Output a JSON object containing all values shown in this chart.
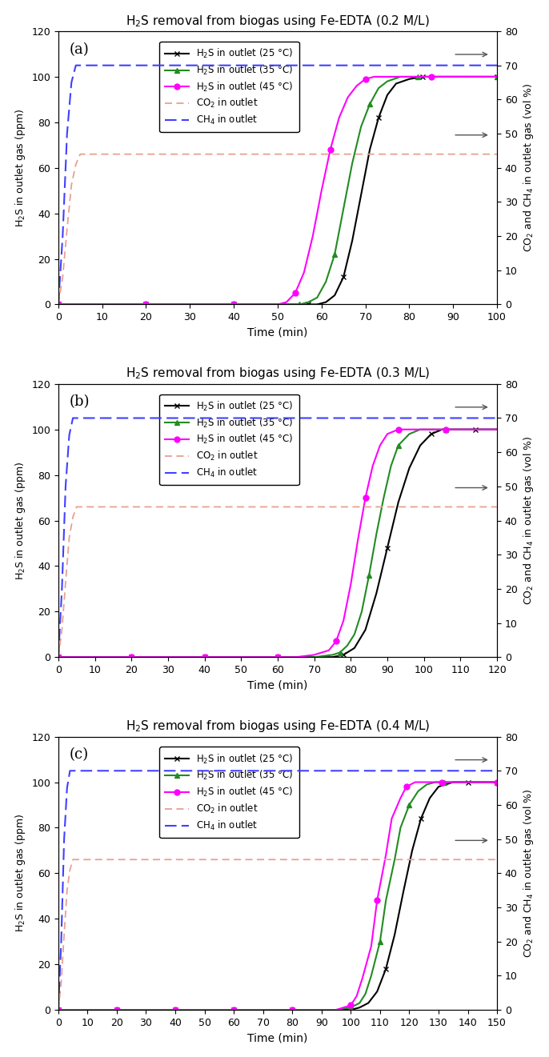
{
  "panels": [
    {
      "title": "H$_2$S removal from biogas using Fe-EDTA (0.2 M/L)",
      "label": "(a)",
      "xmax": 100,
      "xticks": [
        0,
        10,
        20,
        30,
        40,
        50,
        60,
        70,
        80,
        90,
        100
      ],
      "co2_ramp_x": [
        0,
        1,
        2,
        3,
        4,
        5
      ],
      "co2_ramp_y": [
        0,
        8,
        22,
        35,
        41,
        44
      ],
      "co2_flat_value": 44,
      "ch4_ramp_x": [
        0,
        1,
        2,
        3,
        4
      ],
      "ch4_ramp_y": [
        0,
        20,
        50,
        65,
        70
      ],
      "ch4_flat_value": 70,
      "h2s_25_x": [
        0,
        5,
        10,
        15,
        20,
        25,
        30,
        35,
        40,
        45,
        50,
        55,
        57,
        59,
        61,
        63,
        65,
        67,
        69,
        71,
        73,
        75,
        77,
        80,
        83,
        86,
        90,
        95,
        100
      ],
      "h2s_25_y": [
        0,
        0,
        0,
        0,
        0,
        0,
        0,
        0,
        0,
        0,
        0,
        0,
        0,
        0,
        1,
        4,
        12,
        28,
        48,
        68,
        82,
        92,
        97,
        99,
        100,
        100,
        100,
        100,
        100
      ],
      "h2s_35_x": [
        0,
        5,
        10,
        15,
        20,
        25,
        30,
        35,
        40,
        45,
        50,
        53,
        55,
        57,
        59,
        61,
        63,
        65,
        67,
        69,
        71,
        73,
        75,
        78,
        82,
        86,
        90,
        95,
        100
      ],
      "h2s_35_y": [
        0,
        0,
        0,
        0,
        0,
        0,
        0,
        0,
        0,
        0,
        0,
        0,
        0,
        1,
        3,
        10,
        22,
        42,
        62,
        78,
        88,
        95,
        98,
        100,
        100,
        100,
        100,
        100,
        100
      ],
      "h2s_45_x": [
        0,
        5,
        10,
        15,
        20,
        25,
        30,
        35,
        40,
        45,
        50,
        52,
        54,
        56,
        58,
        60,
        62,
        64,
        66,
        68,
        70,
        72,
        75,
        80,
        85,
        90,
        95,
        100
      ],
      "h2s_45_y": [
        0,
        0,
        0,
        0,
        0,
        0,
        0,
        0,
        0,
        0,
        0,
        1,
        5,
        14,
        30,
        50,
        68,
        82,
        91,
        96,
        99,
        100,
        100,
        100,
        100,
        100,
        100,
        100
      ]
    },
    {
      "title": "H$_2$S removal from biogas using Fe-EDTA (0.3 M/L)",
      "label": "(b)",
      "xmax": 120,
      "xticks": [
        0,
        10,
        20,
        30,
        40,
        50,
        60,
        70,
        80,
        90,
        100,
        110,
        120
      ],
      "co2_ramp_x": [
        0,
        1,
        2,
        3,
        4,
        5
      ],
      "co2_ramp_y": [
        0,
        8,
        22,
        35,
        41,
        44
      ],
      "co2_flat_value": 44,
      "ch4_ramp_x": [
        0,
        1,
        2,
        3,
        4
      ],
      "ch4_ramp_y": [
        0,
        20,
        50,
        65,
        70
      ],
      "ch4_flat_value": 70,
      "h2s_25_x": [
        0,
        5,
        10,
        15,
        20,
        25,
        30,
        35,
        40,
        45,
        50,
        55,
        60,
        65,
        70,
        75,
        78,
        81,
        84,
        87,
        90,
        93,
        96,
        99,
        102,
        105,
        108,
        111,
        114,
        117,
        120
      ],
      "h2s_25_y": [
        0,
        0,
        0,
        0,
        0,
        0,
        0,
        0,
        0,
        0,
        0,
        0,
        0,
        0,
        0,
        0,
        1,
        4,
        12,
        28,
        48,
        68,
        83,
        93,
        98,
        100,
        100,
        100,
        100,
        100,
        100
      ],
      "h2s_35_x": [
        0,
        5,
        10,
        15,
        20,
        25,
        30,
        35,
        40,
        45,
        50,
        55,
        60,
        65,
        70,
        75,
        77,
        79,
        81,
        83,
        85,
        87,
        89,
        91,
        93,
        96,
        99,
        102,
        106,
        110,
        115,
        120
      ],
      "h2s_35_y": [
        0,
        0,
        0,
        0,
        0,
        0,
        0,
        0,
        0,
        0,
        0,
        0,
        0,
        0,
        0,
        1,
        2,
        5,
        10,
        20,
        36,
        54,
        70,
        84,
        93,
        98,
        100,
        100,
        100,
        100,
        100,
        100
      ],
      "h2s_45_x": [
        0,
        5,
        10,
        15,
        20,
        25,
        30,
        35,
        40,
        45,
        50,
        55,
        60,
        65,
        70,
        74,
        76,
        78,
        80,
        82,
        84,
        86,
        88,
        90,
        93,
        96,
        99,
        102,
        106,
        110,
        115,
        120
      ],
      "h2s_45_y": [
        0,
        0,
        0,
        0,
        0,
        0,
        0,
        0,
        0,
        0,
        0,
        0,
        0,
        0,
        1,
        3,
        7,
        16,
        32,
        52,
        70,
        84,
        93,
        98,
        100,
        100,
        100,
        100,
        100,
        100,
        100,
        100
      ]
    },
    {
      "title": "H$_2$S removal from biogas using Fe-EDTA (0.4 M/L)",
      "label": "(c)",
      "xmax": 150,
      "xticks": [
        0,
        10,
        20,
        30,
        40,
        50,
        60,
        70,
        80,
        90,
        100,
        110,
        120,
        130,
        140,
        150
      ],
      "co2_ramp_x": [
        0,
        1,
        2,
        3,
        4,
        5
      ],
      "co2_ramp_y": [
        0,
        8,
        22,
        35,
        41,
        44
      ],
      "co2_flat_value": 44,
      "ch4_ramp_x": [
        0,
        1,
        2,
        3,
        4
      ],
      "ch4_ramp_y": [
        0,
        20,
        50,
        65,
        70
      ],
      "ch4_flat_value": 70,
      "h2s_25_x": [
        0,
        5,
        10,
        15,
        20,
        25,
        30,
        35,
        40,
        45,
        50,
        55,
        60,
        65,
        70,
        75,
        80,
        85,
        90,
        95,
        100,
        103,
        106,
        109,
        112,
        115,
        118,
        121,
        124,
        127,
        130,
        135,
        140,
        145,
        150
      ],
      "h2s_25_y": [
        0,
        0,
        0,
        0,
        0,
        0,
        0,
        0,
        0,
        0,
        0,
        0,
        0,
        0,
        0,
        0,
        0,
        0,
        0,
        0,
        0,
        1,
        3,
        8,
        18,
        33,
        52,
        70,
        84,
        93,
        98,
        100,
        100,
        100,
        100
      ],
      "h2s_35_x": [
        0,
        5,
        10,
        15,
        20,
        25,
        30,
        35,
        40,
        45,
        50,
        55,
        60,
        65,
        70,
        75,
        80,
        85,
        90,
        95,
        100,
        103,
        105,
        107,
        110,
        112,
        115,
        117,
        120,
        123,
        126,
        129,
        132,
        136,
        140,
        145,
        150
      ],
      "h2s_35_y": [
        0,
        0,
        0,
        0,
        0,
        0,
        0,
        0,
        0,
        0,
        0,
        0,
        0,
        0,
        0,
        0,
        0,
        0,
        0,
        0,
        1,
        3,
        7,
        15,
        30,
        48,
        66,
        80,
        90,
        96,
        99,
        100,
        100,
        100,
        100,
        100,
        100
      ],
      "h2s_45_x": [
        0,
        5,
        10,
        15,
        20,
        25,
        30,
        35,
        40,
        45,
        50,
        55,
        60,
        65,
        70,
        75,
        80,
        85,
        90,
        95,
        100,
        102,
        104,
        107,
        109,
        112,
        114,
        117,
        119,
        122,
        125,
        128,
        131,
        135,
        140,
        145,
        150
      ],
      "h2s_45_y": [
        0,
        0,
        0,
        0,
        0,
        0,
        0,
        0,
        0,
        0,
        0,
        0,
        0,
        0,
        0,
        0,
        0,
        0,
        0,
        0,
        2,
        6,
        14,
        28,
        48,
        68,
        84,
        93,
        98,
        100,
        100,
        100,
        100,
        100,
        100,
        100,
        100
      ]
    }
  ],
  "color_25": "#000000",
  "color_35": "#228B22",
  "color_45": "#FF00FF",
  "color_co2": "#E8A090",
  "color_ch4": "#4040FF",
  "ylabel_left": "H$_2$S in outlet gas (ppm)",
  "ylabel_right": "CO$_2$ and CH$_4$ in outlet gas (vol %)",
  "xlabel": "Time (min)",
  "ylim_left": [
    0,
    120
  ],
  "ylim_right": [
    0,
    80
  ],
  "yticks_left": [
    0,
    20,
    40,
    60,
    80,
    100,
    120
  ],
  "yticks_right": [
    0,
    10,
    20,
    30,
    40,
    50,
    60,
    70,
    80
  ],
  "legend_labels": [
    "H$_2$S in outlet (25 °C)",
    "H$_2$S in outlet (35 °C)",
    "H$_2$S in outlet (45 °C)",
    "CO$_2$ in outlet",
    "CH$_4$ in outlet"
  ]
}
